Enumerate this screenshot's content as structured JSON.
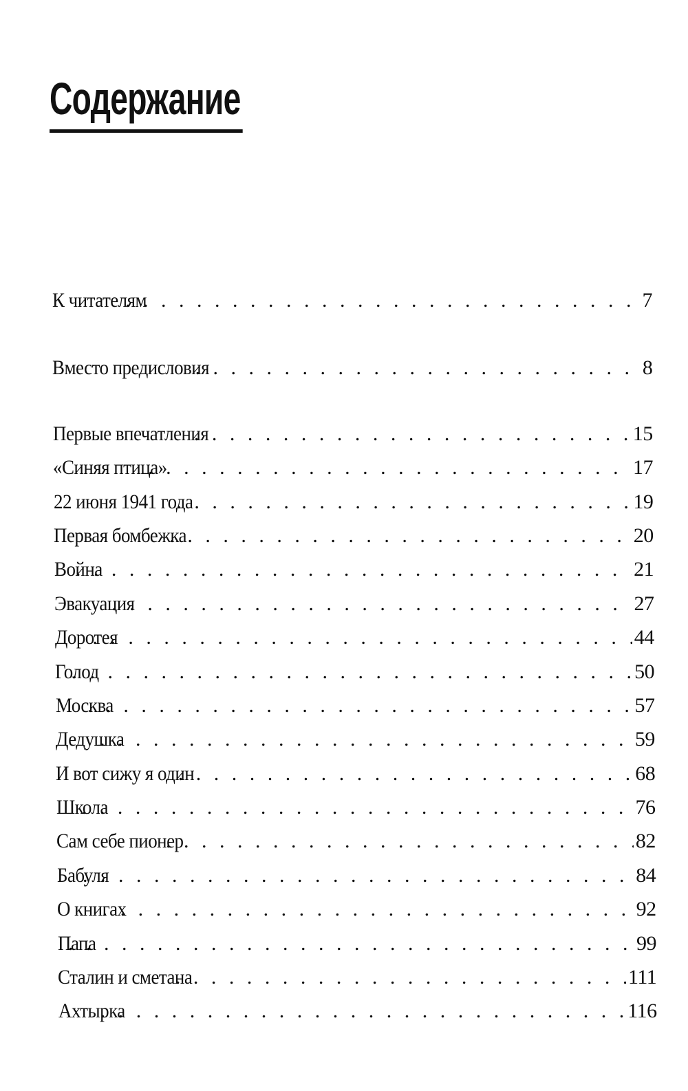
{
  "title": "Содержание",
  "entries": [
    {
      "label": "К читателям",
      "page": "7"
    },
    {
      "label": "Вместо предисловия",
      "page": "8"
    },
    {
      "label": "Первые впечатления",
      "page": "15"
    },
    {
      "label": "«Синяя птица»",
      "page": "17"
    },
    {
      "label": "22 июня 1941 года",
      "page": "19"
    },
    {
      "label": "Первая бомбежка",
      "page": "20"
    },
    {
      "label": "Война",
      "page": "21"
    },
    {
      "label": "Эвакуация",
      "page": "27"
    },
    {
      "label": "Доротея",
      "page": "44"
    },
    {
      "label": "Голод",
      "page": "50"
    },
    {
      "label": "Москва",
      "page": "57"
    },
    {
      "label": "Дедушка",
      "page": "59"
    },
    {
      "label": "И вот сижу я один",
      "page": "68"
    },
    {
      "label": "Школа",
      "page": "76"
    },
    {
      "label": "Сам себе пионер",
      "page": "82"
    },
    {
      "label": "Бабуля",
      "page": "84"
    },
    {
      "label": "О книгах",
      "page": "92"
    },
    {
      "label": "Папа",
      "page": "99"
    },
    {
      "label": "Сталин и сметана",
      "page": "111"
    },
    {
      "label": "Ахтырка",
      "page": "116"
    }
  ]
}
